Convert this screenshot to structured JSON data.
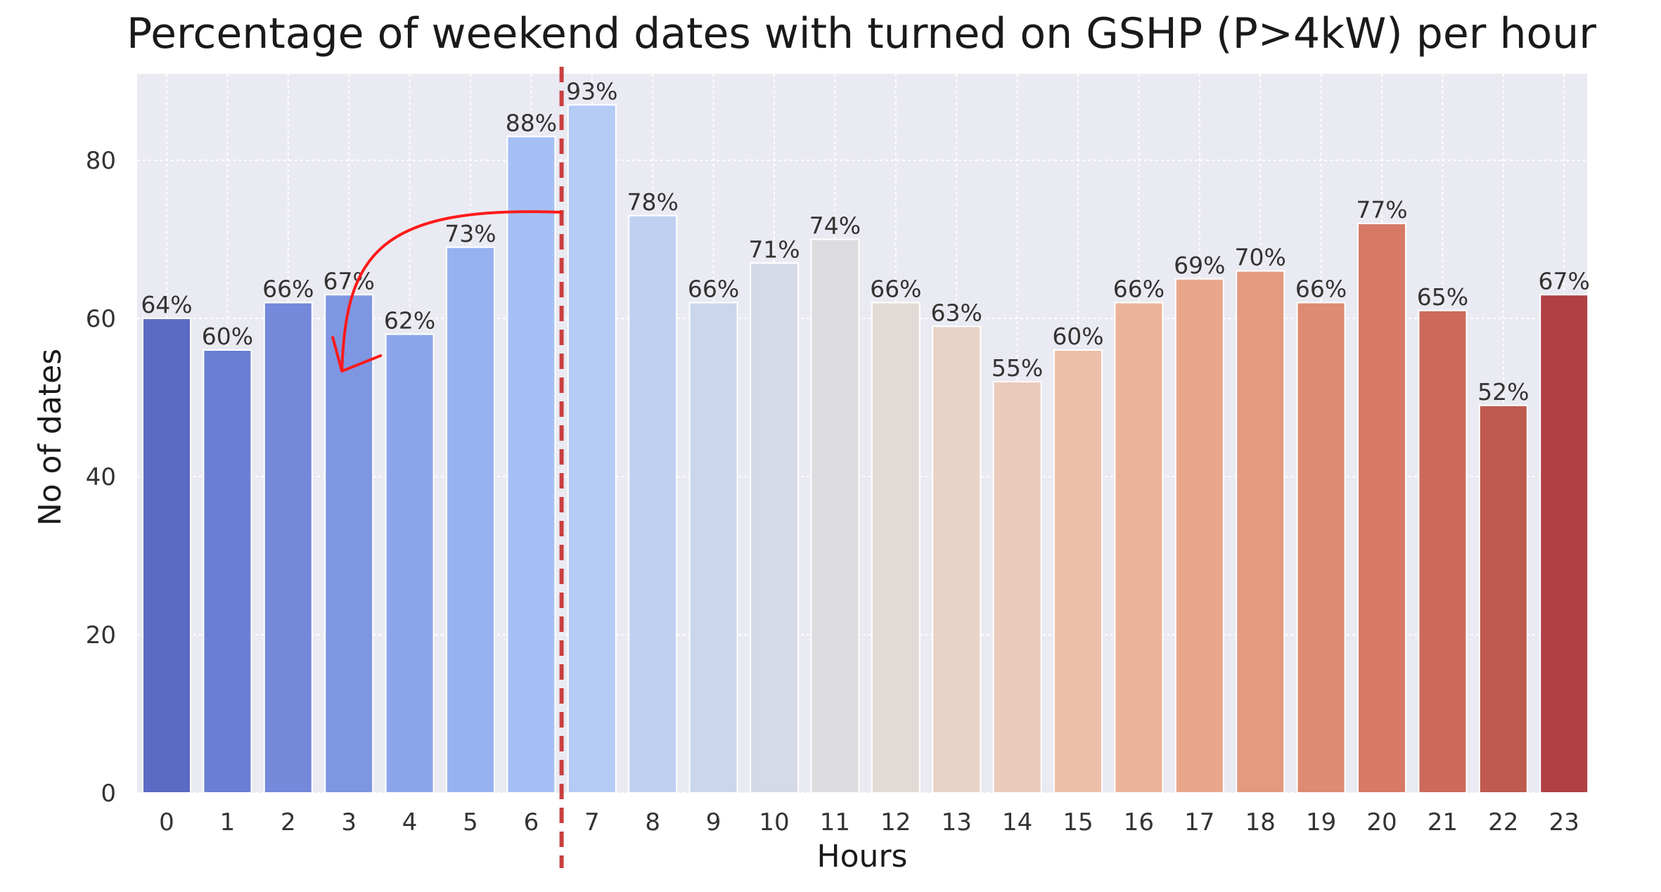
{
  "chart_data": {
    "type": "bar",
    "title": "Percentage of weekend dates with turned on GSHP (P>4kW) per hour",
    "xlabel": "Hours",
    "ylabel": "No of dates",
    "ylim": [
      0,
      90
    ],
    "yticks": [
      0,
      20,
      40,
      60,
      80
    ],
    "grid": true,
    "categories": [
      "0",
      "1",
      "2",
      "3",
      "4",
      "5",
      "6",
      "7",
      "8",
      "9",
      "10",
      "11",
      "12",
      "13",
      "14",
      "15",
      "16",
      "17",
      "18",
      "19",
      "20",
      "21",
      "22",
      "23"
    ],
    "values": [
      60,
      56,
      62,
      63,
      58,
      69,
      83,
      87,
      73,
      62,
      67,
      70,
      62,
      59,
      52,
      56,
      62,
      65,
      66,
      62,
      72,
      61,
      49,
      63
    ],
    "labels": [
      "64%",
      "60%",
      "66%",
      "67%",
      "62%",
      "73%",
      "88%",
      "93%",
      "78%",
      "66%",
      "71%",
      "74%",
      "66%",
      "63%",
      "55%",
      "60%",
      "66%",
      "69%",
      "70%",
      "66%",
      "77%",
      "65%",
      "52%",
      "67%"
    ],
    "colors": [
      "#5b6bc4",
      "#6a7ed3",
      "#7489d9",
      "#7f96e2",
      "#8ca5ea",
      "#97b2ef",
      "#a6c0f5",
      "#b3cbf5",
      "#c0d0f0",
      "#cbd6ec",
      "#d4dae6",
      "#dcdcdf",
      "#e2dad6",
      "#e8d3c8",
      "#ebcbbb",
      "#edbfa9",
      "#ebb49a",
      "#e8a78b",
      "#e39a7f",
      "#dd8b72",
      "#d67a66",
      "#cc6a5a",
      "#be5a50",
      "#b04046"
    ],
    "annotations": {
      "vertical_line": {
        "between_categories": [
          "6",
          "7"
        ],
        "style": "dashed",
        "color": "#c94040"
      },
      "arrow": {
        "from_category": "6.5",
        "to_category": "3",
        "color": "#ff1a1a"
      }
    }
  }
}
